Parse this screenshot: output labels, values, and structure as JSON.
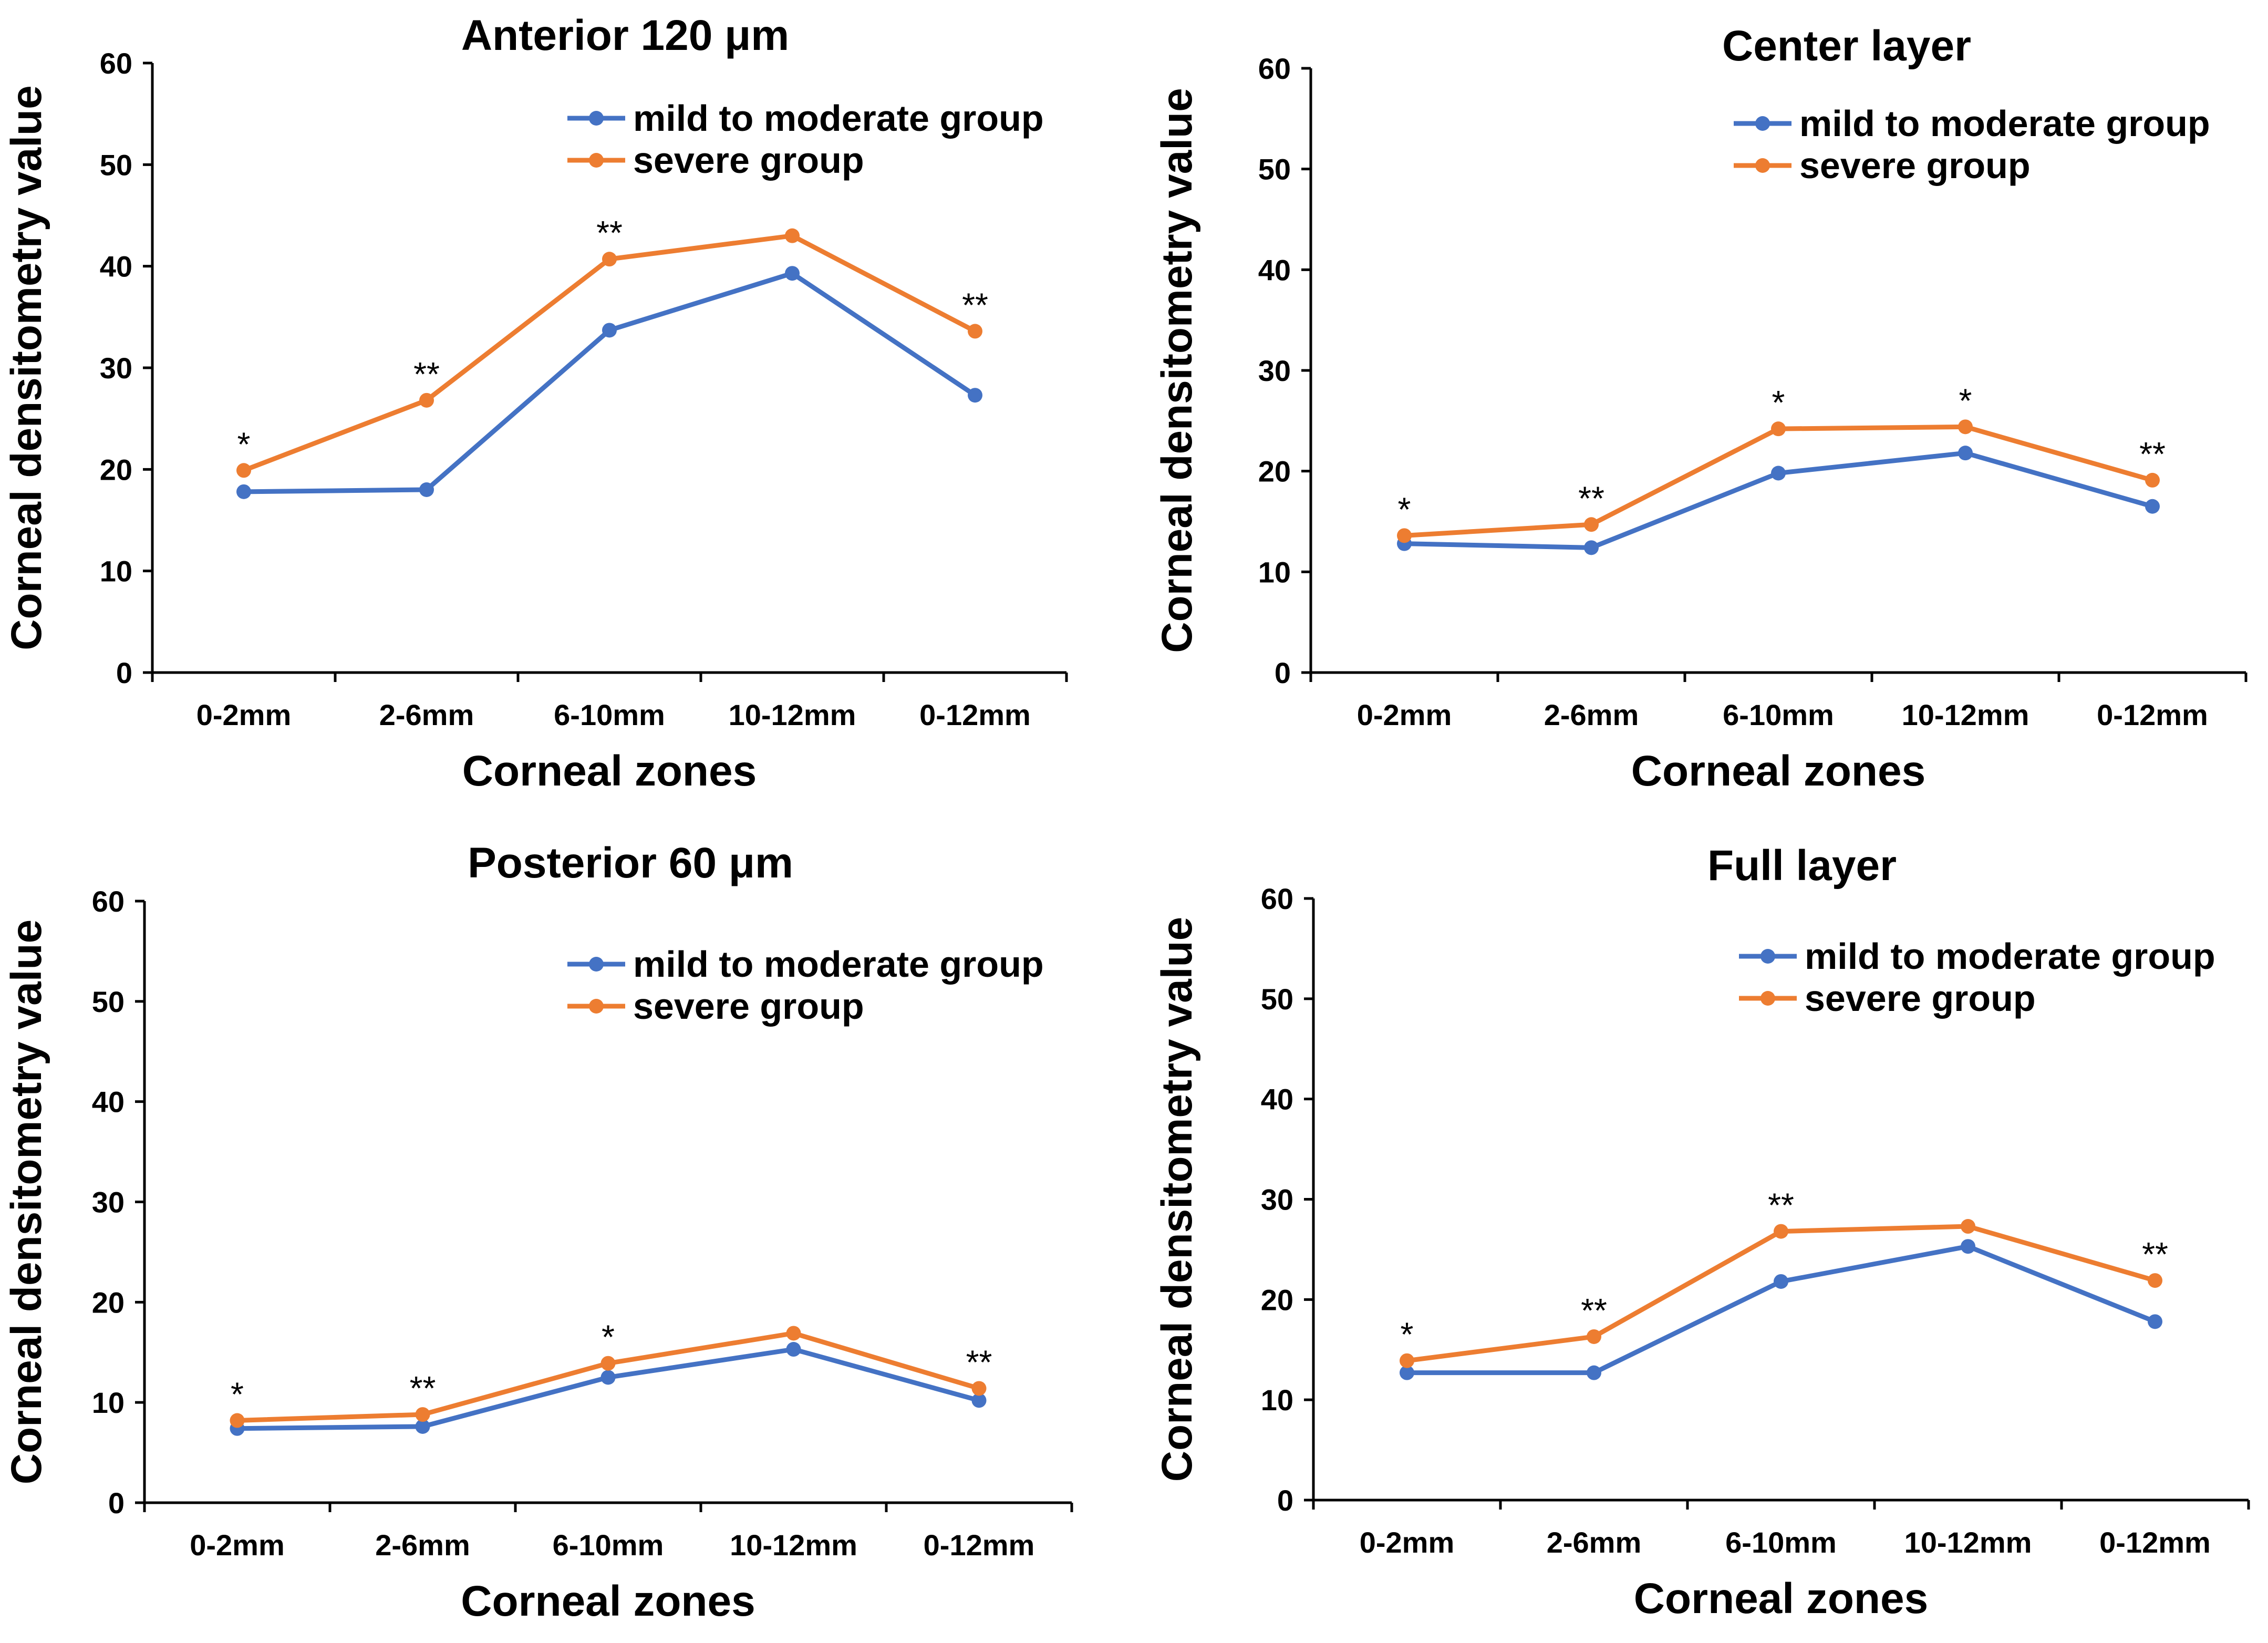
{
  "chart_data": [
    {
      "type": "line",
      "title": "Anterior 120 μm",
      "xlabel": "Corneal zones",
      "ylabel": "Corneal densitometry value",
      "ylim": [
        0,
        60
      ],
      "yticks": [
        0,
        10,
        20,
        30,
        40,
        50,
        60
      ],
      "categories": [
        "0-2mm",
        "2-6mm",
        "6-10mm",
        "10-12mm",
        "0-12mm"
      ],
      "series": [
        {
          "name": "mild to moderate group",
          "color": "#4472C4",
          "values": [
            17.8,
            18.0,
            33.7,
            39.3,
            27.3
          ]
        },
        {
          "name": "severe group",
          "color": "#ED7D31",
          "values": [
            19.9,
            26.8,
            40.7,
            43.0,
            33.6
          ]
        }
      ],
      "significance": [
        "*",
        "**",
        "**",
        "",
        "**"
      ],
      "legend": "top-right"
    },
    {
      "type": "line",
      "title": "Center layer",
      "xlabel": "Corneal zones",
      "ylabel": "Corneal densitometry value",
      "ylim": [
        0,
        60
      ],
      "yticks": [
        0,
        10,
        20,
        30,
        40,
        50,
        60
      ],
      "categories": [
        "0-2mm",
        "2-6mm",
        "6-10mm",
        "10-12mm",
        "0-12mm"
      ],
      "series": [
        {
          "name": "mild to moderate group",
          "color": "#4472C4",
          "values": [
            12.8,
            12.4,
            19.8,
            21.8,
            16.5
          ]
        },
        {
          "name": "severe group",
          "color": "#ED7D31",
          "values": [
            13.6,
            14.7,
            24.2,
            24.4,
            19.1
          ]
        }
      ],
      "significance": [
        "*",
        "**",
        "*",
        "*",
        "**"
      ],
      "legend": "top-right"
    },
    {
      "type": "line",
      "title": "Posterior 60 μm",
      "xlabel": "Corneal zones",
      "ylabel": "Corneal densitometry value",
      "ylim": [
        0,
        60
      ],
      "yticks": [
        0,
        10,
        20,
        30,
        40,
        50,
        60
      ],
      "categories": [
        "0-2mm",
        "2-6mm",
        "6-10mm",
        "10-12mm",
        "0-12mm"
      ],
      "series": [
        {
          "name": "mild to moderate group",
          "color": "#4472C4",
          "values": [
            7.4,
            7.6,
            12.5,
            15.3,
            10.2
          ]
        },
        {
          "name": "severe group",
          "color": "#ED7D31",
          "values": [
            8.2,
            8.8,
            13.9,
            16.9,
            11.4
          ]
        }
      ],
      "significance": [
        "*",
        "**",
        "*",
        "",
        "**"
      ],
      "legend": "top-right"
    },
    {
      "type": "line",
      "title": "Full layer",
      "xlabel": "Corneal zones",
      "ylabel": "Corneal densitometry value",
      "ylim": [
        0,
        60
      ],
      "yticks": [
        0,
        10,
        20,
        30,
        40,
        50,
        60
      ],
      "categories": [
        "0-2mm",
        "2-6mm",
        "6-10mm",
        "10-12mm",
        "0-12mm"
      ],
      "series": [
        {
          "name": "mild to moderate group",
          "color": "#4472C4",
          "values": [
            12.7,
            12.7,
            21.8,
            25.3,
            17.8
          ]
        },
        {
          "name": "severe group",
          "color": "#ED7D31",
          "values": [
            13.9,
            16.3,
            26.8,
            27.3,
            21.9
          ]
        }
      ],
      "significance": [
        "*",
        "**",
        "**",
        "",
        "**"
      ],
      "legend": "top-right"
    }
  ]
}
